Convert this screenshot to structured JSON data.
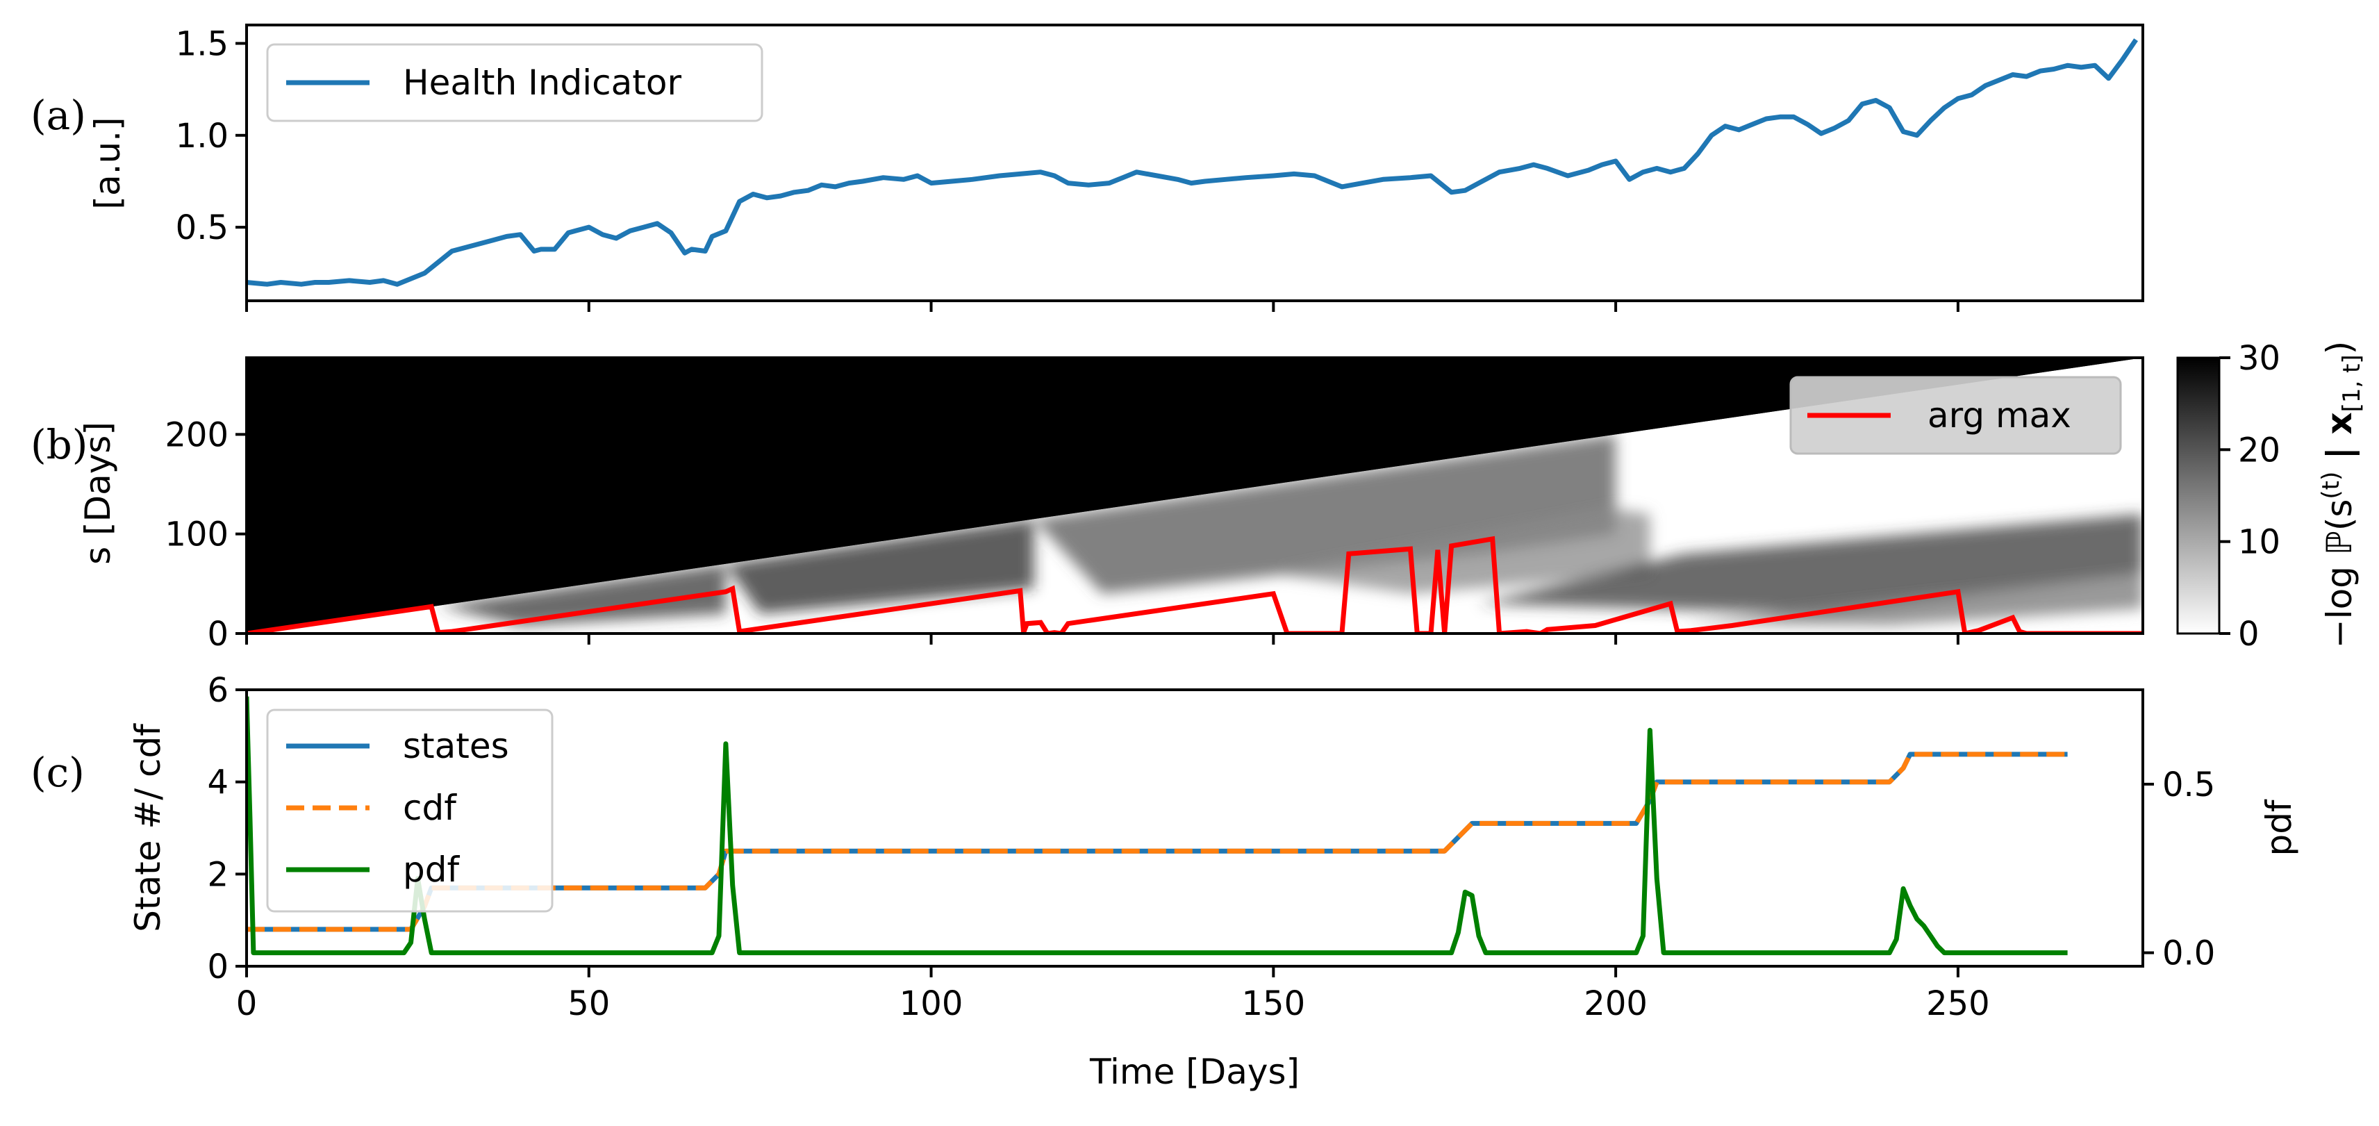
{
  "chart_data": [
    {
      "panel": "(a)",
      "type": "line",
      "ylabel": "[a.u.]",
      "xlim": [
        0,
        277
      ],
      "ylim": [
        0.1,
        1.6
      ],
      "yticks": [
        "0.5",
        "1.0",
        "1.5"
      ],
      "ytick_values": [
        0.5,
        1.0,
        1.5
      ],
      "legend": "upper left",
      "series": [
        {
          "name": "Health Indicator",
          "color": "#1f77b4",
          "x": [
            0,
            3,
            5,
            8,
            10,
            12,
            15,
            18,
            20,
            22,
            24,
            26,
            28,
            30,
            32,
            34,
            36,
            38,
            40,
            42,
            43,
            45,
            47,
            48,
            50,
            52,
            54,
            56,
            58,
            60,
            62,
            64,
            65,
            67,
            68,
            70,
            72,
            74,
            76,
            78,
            80,
            82,
            84,
            86,
            88,
            90,
            93,
            96,
            98,
            100,
            103,
            106,
            110,
            113,
            116,
            118,
            120,
            123,
            126,
            128,
            130,
            133,
            136,
            138,
            140,
            143,
            146,
            150,
            153,
            156,
            158,
            160,
            163,
            166,
            170,
            173,
            176,
            178,
            180,
            183,
            186,
            188,
            190,
            193,
            196,
            198,
            200,
            202,
            204,
            206,
            208,
            210,
            212,
            214,
            216,
            218,
            220,
            222,
            224,
            226,
            228,
            230,
            232,
            234,
            236,
            238,
            240,
            242,
            244,
            246,
            248,
            250,
            252,
            254,
            256,
            258,
            260,
            262,
            264,
            266,
            268,
            270,
            272,
            274,
            276
          ],
          "values": [
            0.2,
            0.19,
            0.2,
            0.19,
            0.2,
            0.2,
            0.21,
            0.2,
            0.21,
            0.19,
            0.22,
            0.25,
            0.31,
            0.37,
            0.39,
            0.41,
            0.43,
            0.45,
            0.46,
            0.37,
            0.38,
            0.38,
            0.47,
            0.48,
            0.5,
            0.46,
            0.44,
            0.48,
            0.5,
            0.52,
            0.47,
            0.36,
            0.38,
            0.37,
            0.45,
            0.48,
            0.64,
            0.68,
            0.66,
            0.67,
            0.69,
            0.7,
            0.73,
            0.72,
            0.74,
            0.75,
            0.77,
            0.76,
            0.78,
            0.74,
            0.75,
            0.76,
            0.78,
            0.79,
            0.8,
            0.78,
            0.74,
            0.73,
            0.74,
            0.77,
            0.8,
            0.78,
            0.76,
            0.74,
            0.75,
            0.76,
            0.77,
            0.78,
            0.79,
            0.78,
            0.75,
            0.72,
            0.74,
            0.76,
            0.77,
            0.78,
            0.69,
            0.7,
            0.74,
            0.8,
            0.82,
            0.84,
            0.82,
            0.78,
            0.81,
            0.84,
            0.86,
            0.76,
            0.8,
            0.82,
            0.8,
            0.82,
            0.9,
            1.0,
            1.05,
            1.03,
            1.06,
            1.09,
            1.1,
            1.1,
            1.06,
            1.01,
            1.04,
            1.08,
            1.17,
            1.19,
            1.15,
            1.02,
            1.0,
            1.08,
            1.15,
            1.2,
            1.22,
            1.27,
            1.3,
            1.33,
            1.32,
            1.35,
            1.36,
            1.38,
            1.37,
            1.38,
            1.31,
            1.41,
            1.52
          ]
        }
      ]
    },
    {
      "panel": "(b)",
      "type": "heatmap",
      "ylabel": "s [Days]",
      "xlim": [
        0,
        277
      ],
      "ylim": [
        0,
        277
      ],
      "yticks": [
        "0",
        "100",
        "200"
      ],
      "ytick_values": [
        0,
        100,
        200
      ],
      "colorbar": {
        "label_prefix": "−log ℙ(s",
        "label_sup": "(t)",
        "label_mid": " | x",
        "label_sub": "[1, t]",
        "label_suffix": ")",
        "range": [
          0,
          30
        ],
        "ticks": [
          "0",
          "10",
          "20",
          "30"
        ],
        "tick_values": [
          0,
          10,
          20,
          30
        ]
      },
      "legend": "upper right",
      "series": [
        {
          "name": "arg max",
          "color": "#ff0000",
          "x": [
            0,
            27,
            28,
            30,
            32,
            70,
            71,
            72,
            113,
            113.5,
            114,
            116,
            117,
            118,
            119,
            120,
            150,
            152,
            160,
            161,
            170,
            171,
            172,
            173,
            174,
            175,
            176,
            182,
            183,
            187,
            188,
            189,
            190,
            197,
            208,
            209,
            211,
            217,
            250,
            251,
            253,
            258,
            259,
            260,
            277
          ],
          "values": [
            0,
            27,
            1,
            2,
            4,
            42,
            45,
            2,
            43,
            1,
            10,
            11,
            0,
            1,
            0,
            10,
            40,
            0,
            0,
            80,
            85,
            0,
            0,
            0,
            84,
            0,
            88,
            95,
            0,
            2,
            1,
            0,
            4,
            8,
            30,
            2,
            3,
            8,
            42,
            0,
            3,
            16,
            2,
            0,
            0
          ]
        }
      ]
    },
    {
      "panel": "(c)",
      "type": "line",
      "xlabel": "Time [Days]",
      "ylabel": "State #/ cdf",
      "ylabel_right": "pdf",
      "xlim": [
        0,
        277
      ],
      "ylim": [
        0,
        6
      ],
      "ylim_right": [
        -0.04,
        0.78
      ],
      "xticks": [
        "0",
        "50",
        "100",
        "150",
        "200",
        "250"
      ],
      "xtick_values": [
        0,
        50,
        100,
        150,
        200,
        250
      ],
      "yticks": [
        "0",
        "2",
        "4",
        "6"
      ],
      "ytick_values": [
        0,
        2,
        4,
        6
      ],
      "yticks_right": [
        "0.0",
        "0.5"
      ],
      "ytick_values_right": [
        0.0,
        0.5
      ],
      "legend": "upper left",
      "series": [
        {
          "name": "states",
          "color": "#1f77b4",
          "style": "solid",
          "x": [
            0,
            24,
            26,
            27,
            67,
            69,
            70,
            175,
            177,
            179,
            203,
            205,
            206,
            240,
            242,
            243,
            266
          ],
          "values": [
            0.8,
            0.8,
            1.3,
            1.7,
            1.7,
            2.0,
            2.5,
            2.5,
            2.8,
            3.1,
            3.1,
            3.6,
            4.0,
            4.0,
            4.3,
            4.6,
            4.6
          ]
        },
        {
          "name": "cdf",
          "color": "#ff7f0e",
          "style": "dashed",
          "x": [
            0,
            24,
            26,
            27,
            67,
            69,
            70,
            175,
            177,
            179,
            203,
            205,
            206,
            240,
            242,
            243,
            266
          ],
          "values": [
            0.8,
            0.8,
            1.3,
            1.7,
            1.7,
            2.0,
            2.5,
            2.5,
            2.8,
            3.1,
            3.1,
            3.6,
            4.0,
            4.0,
            4.3,
            4.6,
            4.6
          ]
        },
        {
          "name": "pdf",
          "color": "#008000",
          "style": "solid",
          "axis": "right",
          "x": [
            0,
            0.5,
            1,
            2,
            23,
            24,
            25,
            26,
            27,
            28,
            68,
            69,
            70,
            71,
            72,
            176,
            177,
            178,
            179,
            180,
            181,
            203,
            204,
            205,
            206,
            207,
            240,
            241,
            242,
            243,
            244,
            245,
            246,
            247,
            248,
            266
          ],
          "values": [
            0.76,
            0.4,
            0.0,
            0.0,
            0.0,
            0.03,
            0.22,
            0.1,
            0.0,
            0.0,
            0.0,
            0.05,
            0.62,
            0.2,
            0.0,
            0.0,
            0.06,
            0.18,
            0.17,
            0.05,
            0.0,
            0.0,
            0.05,
            0.66,
            0.22,
            0.0,
            0.0,
            0.04,
            0.19,
            0.14,
            0.1,
            0.08,
            0.05,
            0.02,
            0.0,
            0.0
          ]
        }
      ]
    }
  ]
}
